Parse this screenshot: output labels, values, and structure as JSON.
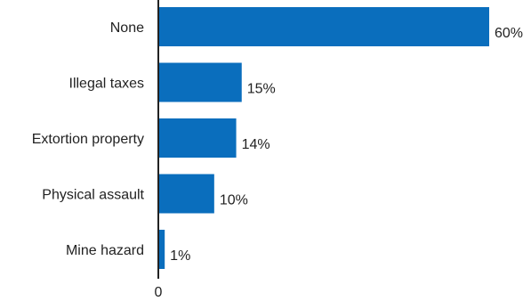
{
  "chart_data": {
    "type": "bar",
    "orientation": "horizontal",
    "categories": [
      "None",
      "Illegal taxes",
      "Extortion property",
      "Physical assault",
      "Mine hazard"
    ],
    "values": [
      60,
      15,
      14,
      10,
      1
    ],
    "value_labels": [
      "60%",
      "15%",
      "14%",
      "10%",
      "1%"
    ],
    "x_tick_labels": [
      "0"
    ],
    "xlim": [
      0,
      60
    ],
    "grid": false,
    "bar_color": "#0a6ebd"
  }
}
